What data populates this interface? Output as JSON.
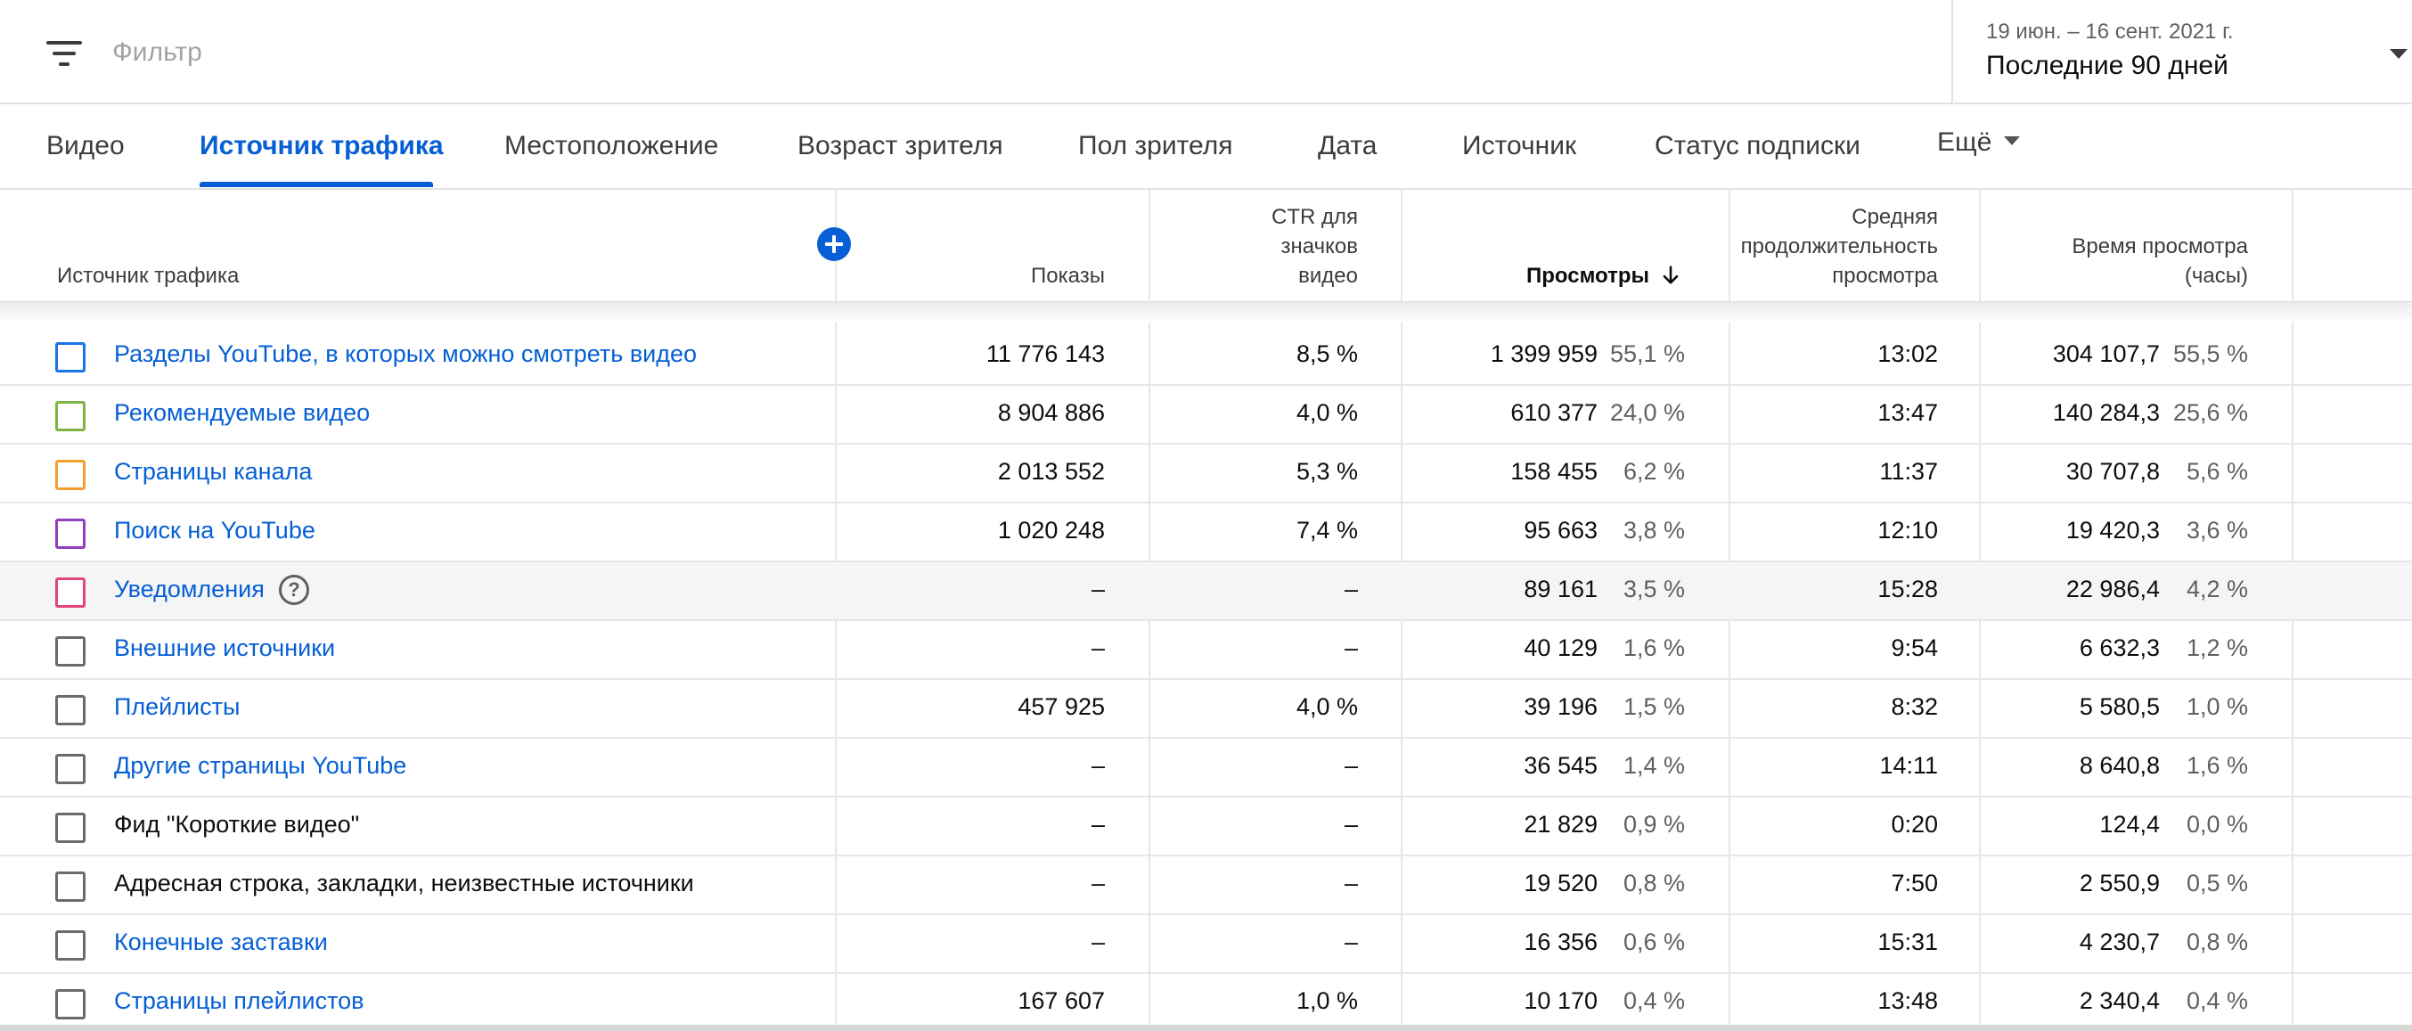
{
  "filter": {
    "placeholder": "Фильтр",
    "icon": "filter-list-icon"
  },
  "date_range": {
    "range": "19 июн. – 16 сент. 2021 г.",
    "label": "Последние 90 дней"
  },
  "tabs": [
    {
      "label": "Видео",
      "active": false
    },
    {
      "label": "Источник трафика",
      "active": true
    },
    {
      "label": "Местоположение",
      "active": false
    },
    {
      "label": "Возраст зрителя",
      "active": false
    },
    {
      "label": "Пол зрителя",
      "active": false
    },
    {
      "label": "Дата",
      "active": false
    },
    {
      "label": "Источник",
      "active": false
    },
    {
      "label": "Статус подписки",
      "active": false
    },
    {
      "label": "Ещё",
      "active": false
    }
  ],
  "columns": {
    "source": "Источник трафика",
    "impressions": "Показы",
    "ctr": "CTR для\nзначков\nвидео",
    "views": "Просмотры",
    "avg_duration": "Средняя\nпродолжительность\nпросмотра",
    "watch_time": "Время просмотра\n(часы)"
  },
  "sorted_column": "views",
  "accent_color": "#065fd4",
  "rows": [
    {
      "source": "Разделы YouTube, в которых можно смотреть видео",
      "link": true,
      "color": "#1a73e8",
      "impressions": "11 776 143",
      "ctr": "8,5 %",
      "views": "1 399 959",
      "views_pct": "55,1 %",
      "avg_duration": "13:02",
      "watch_time": "304 107,7",
      "watch_pct": "55,5 %"
    },
    {
      "source": "Рекомендуемые видео",
      "link": true,
      "color": "#7cb342",
      "impressions": "8 904 886",
      "ctr": "4,0 %",
      "views": "610 377",
      "views_pct": "24,0 %",
      "avg_duration": "13:47",
      "watch_time": "140 284,3",
      "watch_pct": "25,6 %"
    },
    {
      "source": "Страницы канала",
      "link": true,
      "color": "#f0a030",
      "impressions": "2 013 552",
      "ctr": "5,3 %",
      "views": "158 455",
      "views_pct": "6,2 %",
      "avg_duration": "11:37",
      "watch_time": "30 707,8",
      "watch_pct": "5,6 %"
    },
    {
      "source": "Поиск на YouTube",
      "link": true,
      "color": "#8e3fbf",
      "impressions": "1 020 248",
      "ctr": "7,4 %",
      "views": "95 663",
      "views_pct": "3,8 %",
      "avg_duration": "12:10",
      "watch_time": "19 420,3",
      "watch_pct": "3,6 %"
    },
    {
      "source": "Уведомления",
      "link": true,
      "color": "#e0457b",
      "help": true,
      "highlight": true,
      "impressions": "–",
      "ctr": "–",
      "views": "89 161",
      "views_pct": "3,5 %",
      "avg_duration": "15:28",
      "watch_time": "22 986,4",
      "watch_pct": "4,2 %"
    },
    {
      "source": "Внешние источники",
      "link": true,
      "color": "#6b6b6b",
      "impressions": "–",
      "ctr": "–",
      "views": "40 129",
      "views_pct": "1,6 %",
      "avg_duration": "9:54",
      "watch_time": "6 632,3",
      "watch_pct": "1,2 %"
    },
    {
      "source": "Плейлисты",
      "link": true,
      "color": "#6b6b6b",
      "impressions": "457 925",
      "ctr": "4,0 %",
      "views": "39 196",
      "views_pct": "1,5 %",
      "avg_duration": "8:32",
      "watch_time": "5 580,5",
      "watch_pct": "1,0 %"
    },
    {
      "source": "Другие страницы YouTube",
      "link": true,
      "color": "#6b6b6b",
      "impressions": "–",
      "ctr": "–",
      "views": "36 545",
      "views_pct": "1,4 %",
      "avg_duration": "14:11",
      "watch_time": "8 640,8",
      "watch_pct": "1,6 %"
    },
    {
      "source": "Фид \"Короткие видео\"",
      "link": false,
      "color": "#6b6b6b",
      "impressions": "–",
      "ctr": "–",
      "views": "21 829",
      "views_pct": "0,9 %",
      "avg_duration": "0:20",
      "watch_time": "124,4",
      "watch_pct": "0,0 %"
    },
    {
      "source": "Адресная строка, закладки, неизвестные источники",
      "link": false,
      "color": "#6b6b6b",
      "impressions": "–",
      "ctr": "–",
      "views": "19 520",
      "views_pct": "0,8 %",
      "avg_duration": "7:50",
      "watch_time": "2 550,9",
      "watch_pct": "0,5 %"
    },
    {
      "source": "Конечные заставки",
      "link": true,
      "color": "#6b6b6b",
      "impressions": "–",
      "ctr": "–",
      "views": "16 356",
      "views_pct": "0,6 %",
      "avg_duration": "15:31",
      "watch_time": "4 230,7",
      "watch_pct": "0,8 %"
    },
    {
      "source": "Страницы плейлистов",
      "link": true,
      "color": "#6b6b6b",
      "impressions": "167 607",
      "ctr": "1,0 %",
      "views": "10 170",
      "views_pct": "0,4 %",
      "avg_duration": "13:48",
      "watch_time": "2 340,4",
      "watch_pct": "0,4 %"
    }
  ]
}
